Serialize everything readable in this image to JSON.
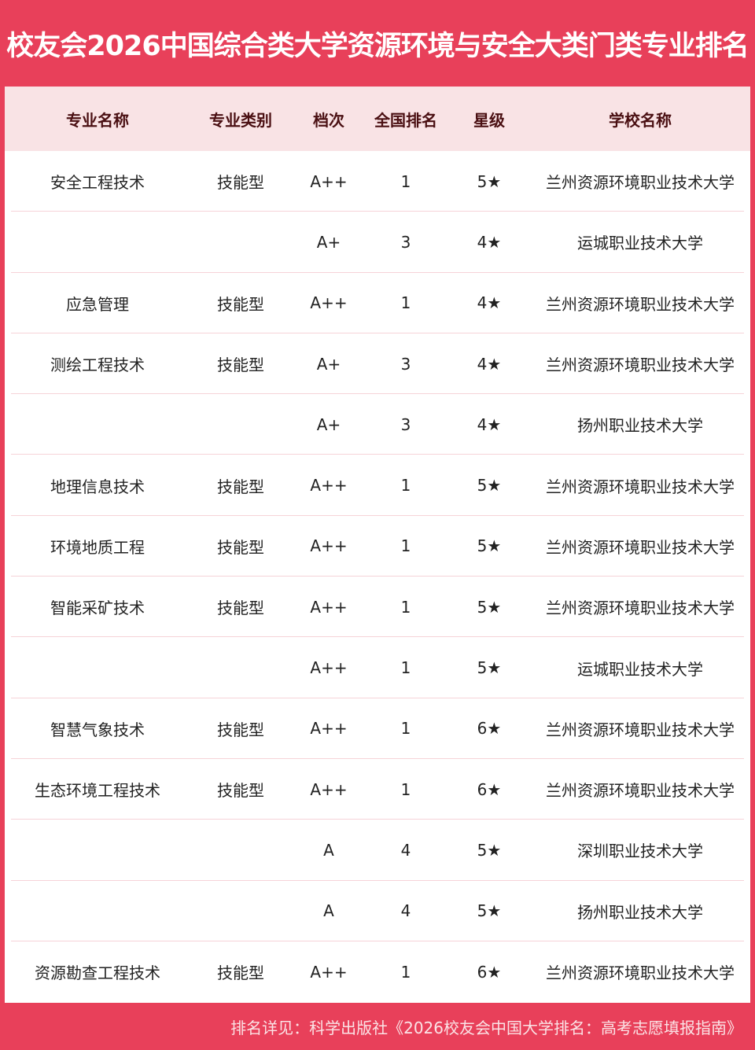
{
  "title": "校友会2026中国综合类大学资源环境与安全大类门类专业排名",
  "headers": [
    "专业名称",
    "专业类别",
    "档次",
    "全国排名",
    "星级",
    "学校名称"
  ],
  "rows": [
    [
      "安全工程技术",
      "技能型",
      "A++",
      "1",
      "5★",
      "兰州资源环境职业技术大学"
    ],
    [
      "",
      "",
      "A+",
      "3",
      "4★",
      "运城职业技术大学"
    ],
    [
      "应急管理",
      "技能型",
      "A++",
      "1",
      "4★",
      "兰州资源环境职业技术大学"
    ],
    [
      "测绘工程技术",
      "技能型",
      "A+",
      "3",
      "4★",
      "兰州资源环境职业技术大学"
    ],
    [
      "",
      "",
      "A+",
      "3",
      "4★",
      "扬州职业技术大学"
    ],
    [
      "地理信息技术",
      "技能型",
      "A++",
      "1",
      "5★",
      "兰州资源环境职业技术大学"
    ],
    [
      "环境地质工程",
      "技能型",
      "A++",
      "1",
      "5★",
      "兰州资源环境职业技术大学"
    ],
    [
      "智能采矿技术",
      "技能型",
      "A++",
      "1",
      "5★",
      "兰州资源环境职业技术大学"
    ],
    [
      "",
      "",
      "A++",
      "1",
      "5★",
      "运城职业技术大学"
    ],
    [
      "智慧气象技术",
      "技能型",
      "A++",
      "1",
      "6★",
      "兰州资源环境职业技术大学"
    ],
    [
      "生态环境工程技术",
      "技能型",
      "A++",
      "1",
      "6★",
      "兰州资源环境职业技术大学"
    ],
    [
      "",
      "",
      "A",
      "4",
      "5★",
      "深圳职业技术大学"
    ],
    [
      "",
      "",
      "A",
      "4",
      "5★",
      "扬州职业技术大学"
    ],
    [
      "资源勘查工程技术",
      "技能型",
      "A++",
      "1",
      "6★",
      "兰州资源环境职业技术大学"
    ]
  ],
  "footer": "排名详见：科学出版社《2026校友会中国大学排名：高考志愿填报指南》",
  "colors": {
    "brand": "#E8405A",
    "header_bg": "#F9E3E5",
    "header_text": "#4a0f12"
  }
}
